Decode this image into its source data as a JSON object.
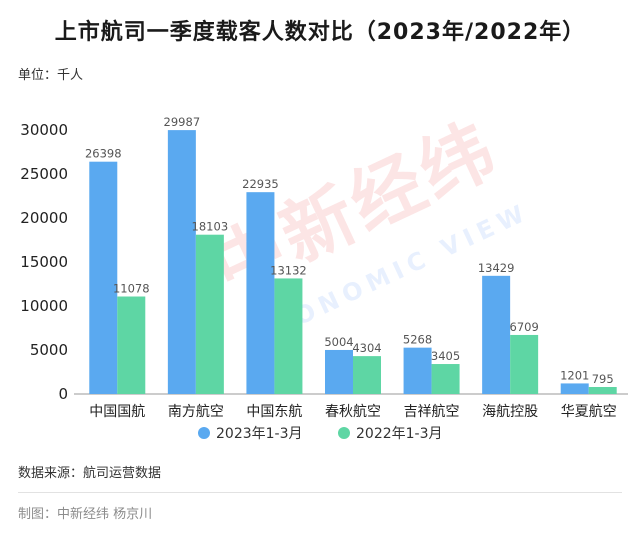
{
  "title": "上市航司一季度载客人数对比（2023年/2022年）",
  "unit_label": "单位：千人",
  "source_label": "数据来源：航司运营数据",
  "credit_label": "制图：中新经纬 杨京川",
  "watermark": {
    "cn": "中新经纬",
    "en": "ECONOMIC VIEW"
  },
  "colors": {
    "series_2023": "#5aa9f0",
    "series_2022": "#5ed6a4",
    "axis": "#999999",
    "label": "#555555"
  },
  "chart_data": {
    "type": "bar",
    "title": "上市航司一季度载客人数对比（2023年/2022年）",
    "ylabel": "单位：千人",
    "ylim": [
      0,
      30000
    ],
    "yticks": [
      0,
      5000,
      10000,
      15000,
      20000,
      25000,
      30000
    ],
    "categories": [
      "中国国航",
      "南方航空",
      "中国东航",
      "春秋航空",
      "吉祥航空",
      "海航控股",
      "华夏航空"
    ],
    "series": [
      {
        "name": "2023年1-3月",
        "values": [
          26398,
          29987,
          22935,
          5004,
          5268,
          13429,
          1201
        ]
      },
      {
        "name": "2022年1-3月",
        "values": [
          11078,
          18103,
          13132,
          4304,
          3405,
          6709,
          795
        ]
      }
    ],
    "grid": false,
    "legend": "bottom-center"
  }
}
